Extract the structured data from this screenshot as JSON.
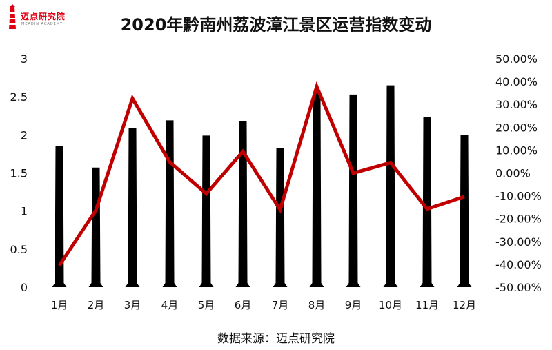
{
  "logo": {
    "text": "迈点研究院",
    "sub": "MEADIN ACADEMY"
  },
  "chart_data": {
    "type": "bar",
    "title": "2020年黔南州荔波漳江景区运营指数变动",
    "categories": [
      "1月",
      "2月",
      "3月",
      "4月",
      "5月",
      "6月",
      "7月",
      "8月",
      "9月",
      "10月",
      "11月",
      "12月"
    ],
    "series": [
      {
        "type": "bar",
        "axis": "left",
        "color": "#000000",
        "values": [
          1.85,
          1.57,
          2.09,
          2.19,
          1.99,
          2.18,
          1.83,
          2.55,
          2.53,
          2.65,
          2.23,
          2.0
        ]
      },
      {
        "type": "line",
        "axis": "right",
        "color": "#c00000",
        "values": [
          -40.5,
          -16.3,
          32.6,
          4.8,
          -9.1,
          9.4,
          -16.1,
          37.8,
          -0.1,
          4.5,
          -15.8,
          -10.4
        ]
      }
    ],
    "y_left": {
      "min": 0,
      "max": 3,
      "ticks": [
        "0",
        "0.5",
        "1",
        "1.5",
        "2",
        "2.5",
        "3"
      ]
    },
    "y_right": {
      "min": -50,
      "max": 50,
      "ticks": [
        "-50.00%",
        "-40.00%",
        "-30.00%",
        "-20.00%",
        "-10.00%",
        "0.00%",
        "10.00%",
        "20.00%",
        "30.00%",
        "40.00%",
        "50.00%"
      ]
    },
    "grid": false,
    "legend": "none"
  },
  "source": "数据来源：迈点研究院"
}
